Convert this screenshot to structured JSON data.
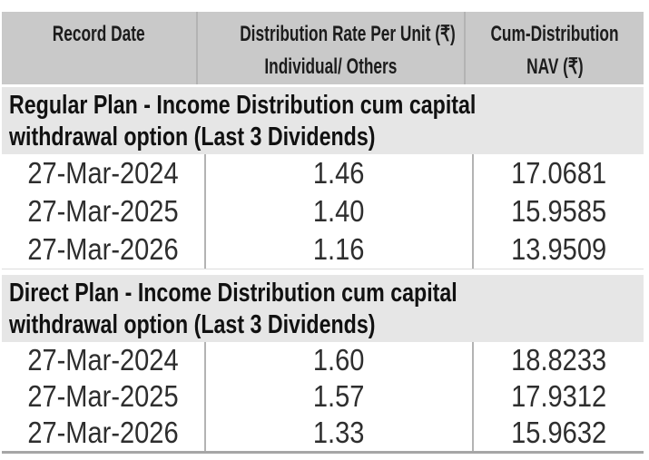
{
  "table": {
    "header": {
      "col1": "Record Date",
      "col2_line1": "Distribution Rate Per Unit  (₹)",
      "col2_line2": "Individual/ Others",
      "col3_line1": "Cum-Distribution",
      "col3_line2": "NAV (₹)"
    },
    "sections": [
      {
        "title_line1": "Regular Plan - Income Distribution cum capital",
        "title_line2": "withdrawal option (Last 3 Dividends)",
        "rows": [
          {
            "date": "27-Mar-2024",
            "rate": "1.46",
            "nav": "17.0681"
          },
          {
            "date": "27-Mar-2025",
            "rate": "1.40",
            "nav": "15.9585"
          },
          {
            "date": "27-Mar-2026",
            "rate": "1.16",
            "nav": "13.9509"
          }
        ]
      },
      {
        "title_line1": "Direct Plan - Income Distribution cum capital",
        "title_line2": "withdrawal option (Last 3 Dividends)",
        "rows": [
          {
            "date": "27-Mar-2024",
            "rate": "1.60",
            "nav": "18.8233"
          },
          {
            "date": "27-Mar-2025",
            "rate": "1.57",
            "nav": "17.9312"
          },
          {
            "date": "27-Mar-2026",
            "rate": "1.33",
            "nav": "15.9632"
          }
        ]
      }
    ],
    "colors": {
      "header_bg": "#c9c9c9",
      "section_bg": "#e6e6e6",
      "column_divider": "#b3b3b3",
      "section_bottom_rule_light": "#dcdcdc",
      "table_bottom_rule": "#a6a6a6",
      "header_text": "#1c1c1c",
      "data_text": "#2e2e2e"
    }
  }
}
